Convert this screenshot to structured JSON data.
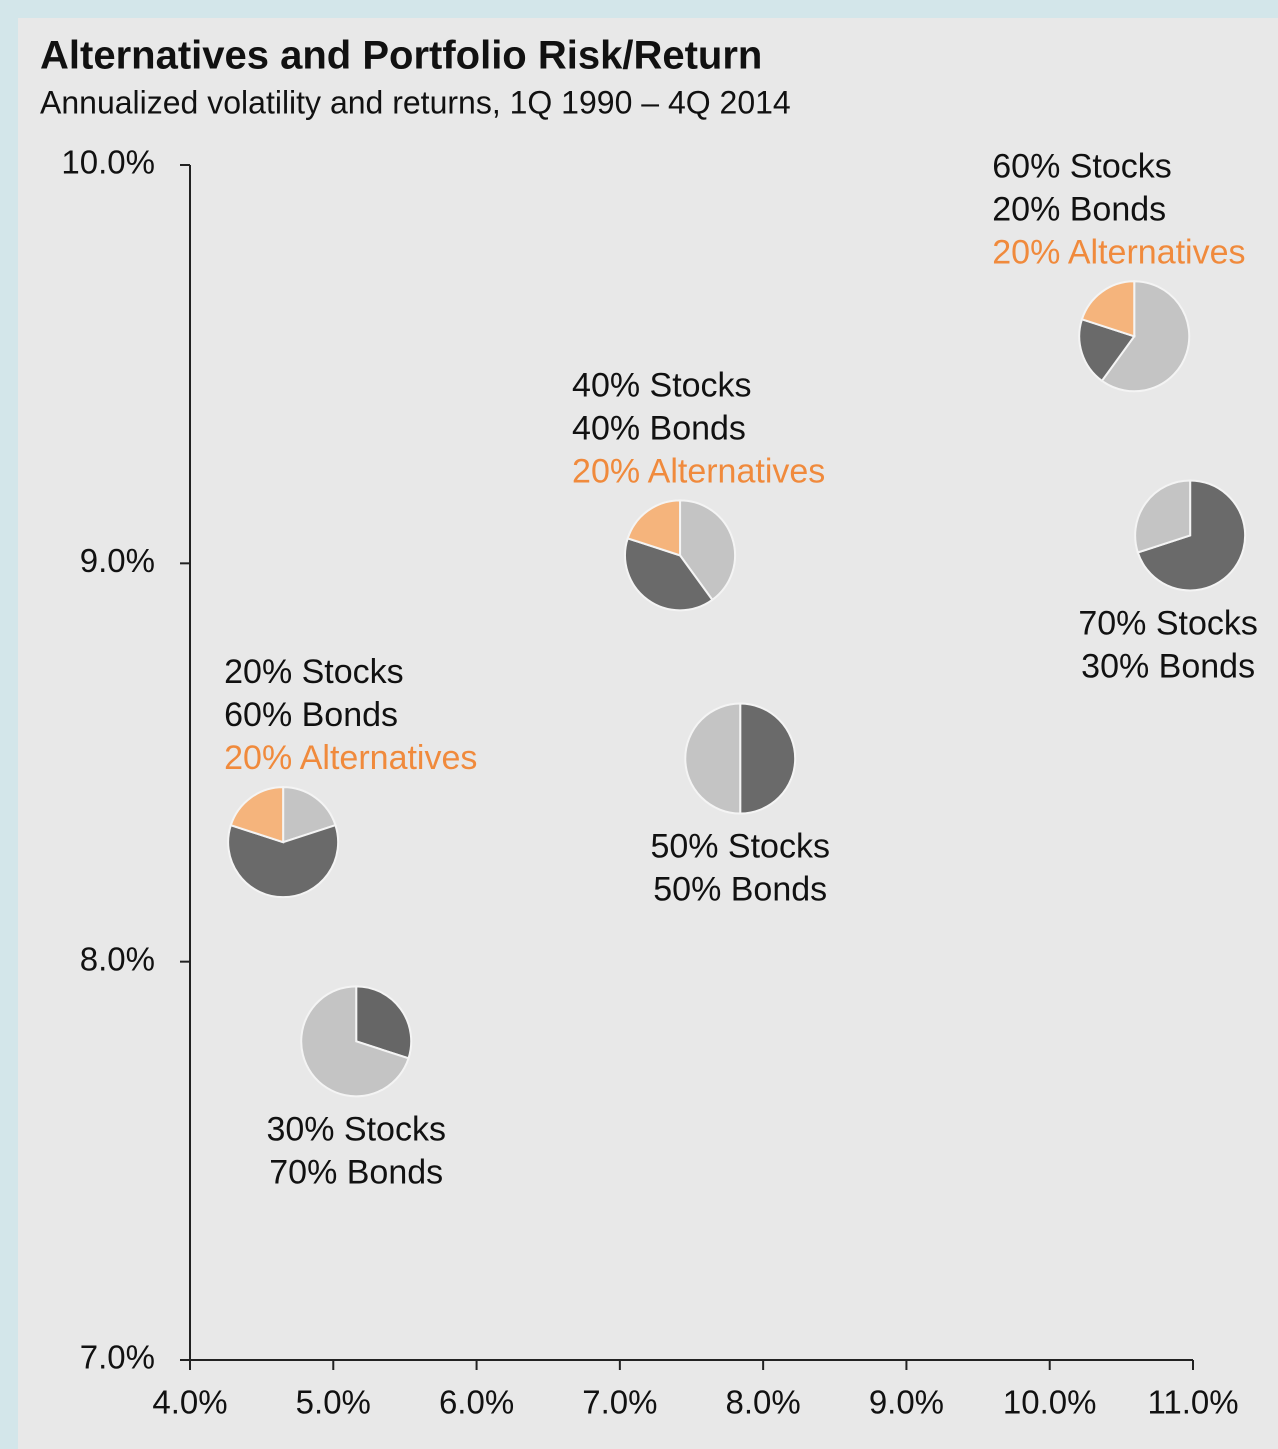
{
  "chart_data": {
    "type": "pie-scatter",
    "title": "Alternatives and Portfolio Risk/Return",
    "subtitle": "Annualized volatility and returns, 1Q 1990 – 4Q 2014",
    "xlim": [
      4,
      11
    ],
    "ylim": [
      7,
      10
    ],
    "xticks": [
      {
        "value": 4,
        "label": "4.0%"
      },
      {
        "value": 5,
        "label": "5.0%"
      },
      {
        "value": 6,
        "label": "6.0%"
      },
      {
        "value": 7,
        "label": "7.0%"
      },
      {
        "value": 8,
        "label": "8.0%"
      },
      {
        "value": 9,
        "label": "9.0%"
      },
      {
        "value": 10,
        "label": "10.0%"
      },
      {
        "value": 11,
        "label": "11.0%"
      }
    ],
    "yticks": [
      {
        "value": 7,
        "label": "7.0%"
      },
      {
        "value": 8,
        "label": "8.0%"
      },
      {
        "value": 9,
        "label": "9.0%"
      },
      {
        "value": 10,
        "label": "10.0%"
      }
    ],
    "points": [
      {
        "x": 4.65,
        "y": 8.3,
        "label_position": "top",
        "labels": [
          "20% Stocks",
          "60% Bonds",
          "20% Alternatives"
        ],
        "slices": [
          20,
          60,
          20
        ],
        "colors": [
          "#c4c4c4",
          "#6a6a6a",
          "#f5b47c"
        ],
        "text_colors": [
          "#111111",
          "#111111",
          "#f08a3c"
        ]
      },
      {
        "x": 5.16,
        "y": 7.8,
        "label_position": "bottom",
        "labels": [
          "30% Stocks",
          "70% Bonds"
        ],
        "slices": [
          30,
          70
        ],
        "colors": [
          "#666666",
          "#c4c4c4"
        ],
        "text_colors": [
          "#111111",
          "#111111"
        ]
      },
      {
        "x": 7.42,
        "y": 9.02,
        "label_position": "top",
        "labels": [
          "40% Stocks",
          "40% Bonds",
          "20% Alternatives"
        ],
        "slices": [
          40,
          40,
          20
        ],
        "colors": [
          "#c4c4c4",
          "#6a6a6a",
          "#f5b47c"
        ],
        "text_colors": [
          "#111111",
          "#111111",
          "#f08a3c"
        ]
      },
      {
        "x": 7.84,
        "y": 8.51,
        "label_position": "bottom",
        "labels": [
          "50% Stocks",
          "50% Bonds"
        ],
        "slices": [
          50,
          50
        ],
        "colors": [
          "#6a6a6a",
          "#c4c4c4"
        ],
        "text_colors": [
          "#111111",
          "#111111"
        ]
      },
      {
        "x": 10.59,
        "y": 9.57,
        "label_position": "top",
        "labels": [
          "60% Stocks",
          "20% Bonds",
          "20% Alternatives"
        ],
        "slices": [
          60,
          20,
          20
        ],
        "colors": [
          "#c4c4c4",
          "#6a6a6a",
          "#f5b47c"
        ],
        "text_colors": [
          "#111111",
          "#111111",
          "#f08a3c"
        ]
      },
      {
        "x": 10.98,
        "y": 9.07,
        "label_position": "bottom",
        "labels": [
          "70% Stocks",
          "30% Bonds"
        ],
        "slices": [
          70,
          30
        ],
        "colors": [
          "#6a6a6a",
          "#c4c4c4"
        ],
        "text_colors": [
          "#111111",
          "#111111"
        ]
      }
    ]
  }
}
